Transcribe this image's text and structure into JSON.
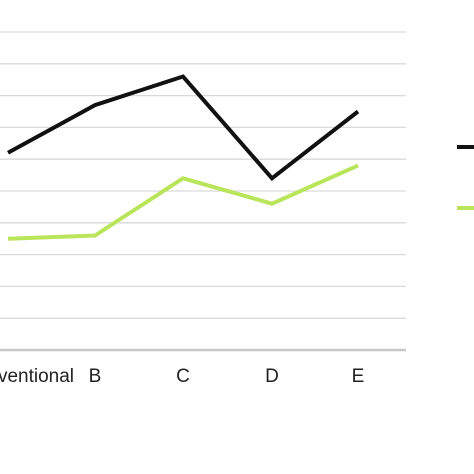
{
  "chart_data": {
    "type": "line",
    "title": "",
    "xlabel": "",
    "ylabel": "",
    "categories": [
      "Conventional",
      "B",
      "C",
      "D",
      "E"
    ],
    "visible_category_labels": [
      "ventional",
      "B",
      "C",
      "D",
      "E"
    ],
    "ylim": [
      0,
      10
    ],
    "gridlines": 10,
    "grid": true,
    "legend": "right",
    "series": [
      {
        "color": "#111111",
        "values": [
          6.2,
          7.7,
          8.6,
          5.4,
          7.5
        ]
      },
      {
        "color": "#b9e55a",
        "values": [
          3.5,
          3.6,
          5.4,
          4.6,
          5.8
        ]
      }
    ]
  }
}
